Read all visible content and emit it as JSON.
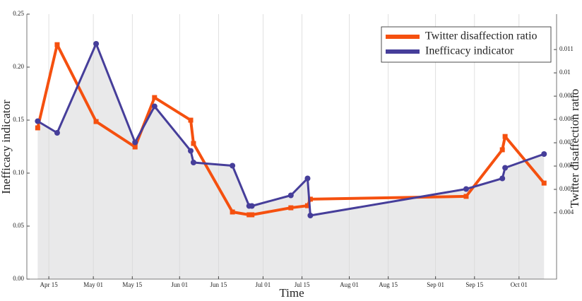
{
  "chart_data": {
    "type": "line",
    "xlabel": "Time",
    "ylabel": "Inefficacy indicator",
    "y2label": "Twitter disaffection ratio",
    "x": [
      101,
      108,
      122,
      136,
      143,
      156,
      157,
      171,
      177,
      178,
      192,
      198,
      199,
      255,
      268,
      269,
      283
    ],
    "series": [
      {
        "name": "Twitter disaffection ratio",
        "color": "#f5500f",
        "axis": "y2",
        "marker": "square",
        "values": [
          0.00764,
          0.01121,
          0.00791,
          0.00682,
          0.00894,
          0.00797,
          0.00697,
          0.00403,
          0.00391,
          0.00391,
          0.00421,
          0.0043,
          0.00458,
          0.0047,
          0.0067,
          0.00727,
          0.00527
        ]
      },
      {
        "name": "Inefficacy indicator",
        "color": "#463e9a",
        "axis": "y",
        "marker": "circle",
        "area": true,
        "values": [
          0.149,
          0.138,
          0.222,
          0.129,
          0.163,
          0.121,
          0.11,
          0.107,
          0.069,
          0.069,
          0.079,
          0.095,
          0.06,
          0.085,
          0.095,
          0.105,
          0.118
        ]
      }
    ],
    "xlim": [
      97.1,
      287.5
    ],
    "xticks": [
      {
        "value": 105,
        "label": "Apr 15"
      },
      {
        "value": 121,
        "label": "May 01"
      },
      {
        "value": 135,
        "label": "May 15"
      },
      {
        "value": 152,
        "label": "Jun 01"
      },
      {
        "value": 166,
        "label": "Jun 15"
      },
      {
        "value": 182,
        "label": "Jul 01"
      },
      {
        "value": 196,
        "label": "Jul 15"
      },
      {
        "value": 213,
        "label": "Aug 01"
      },
      {
        "value": 227,
        "label": "Aug 15"
      },
      {
        "value": 244,
        "label": "Sep 01"
      },
      {
        "value": 258,
        "label": "Sep 15"
      },
      {
        "value": 274,
        "label": "Oct 01"
      }
    ],
    "ylim": [
      0,
      0.25
    ],
    "yticks": [
      {
        "value": 0,
        "label": "0.00"
      },
      0.05,
      {
        "value": 0.1,
        "label": "0.10"
      },
      0.15,
      {
        "value": 0.2,
        "label": "0.20"
      },
      0.25
    ],
    "y2lim": [
      0.00115,
      0.01252
    ],
    "y2ticks": [
      0.004,
      0.005,
      0.006,
      0.007,
      0.008,
      0.009,
      0.01,
      0.011
    ],
    "grid": "x",
    "legend": "top-right"
  }
}
